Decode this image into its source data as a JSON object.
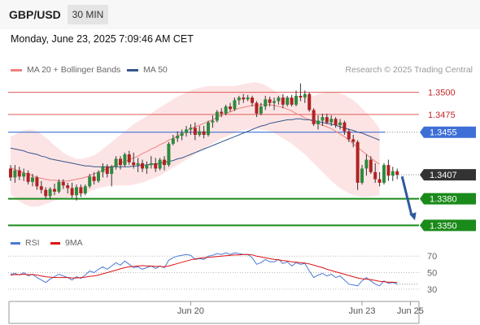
{
  "header": {
    "symbol": "GBP/USD",
    "timeframe": "30 MIN",
    "timestamp": "Monday, June 23, 2025 7:09:46 AM CET",
    "credit": "Research © 2025 Trading Central"
  },
  "legend": {
    "ma20_label": "MA 20 + Bollinger Bands",
    "ma50_label": "MA 50",
    "rsi_label": "RSI",
    "ma9_label": "9MA"
  },
  "colors": {
    "bollinger_fill": "#fde4e4",
    "ma20": "#f08080",
    "ma50": "#34568b",
    "resistance": "#e05a5a",
    "pivot": "#3d6fd6",
    "support": "#1a8a1a",
    "candle_up": "#2e8b3e",
    "candle_down": "#b22222",
    "rsi": "#4a78d6",
    "rsi_ma": "#dd1111",
    "arrow": "#2d5a9e"
  },
  "chart_data": [
    {
      "type": "candlestick",
      "panel": "price",
      "y_min": 1.3343,
      "y_max": 1.3517,
      "x_labels": [
        {
          "label": "Jun 20",
          "index": 41
        },
        {
          "label": "Jun 23",
          "index": 80
        },
        {
          "label": "Jun 25",
          "index": 91
        }
      ],
      "levels": [
        {
          "value": "1.3500",
          "type": "resistance"
        },
        {
          "value": "1.3475",
          "type": "resistance"
        },
        {
          "value": "1.3455",
          "type": "pivot"
        },
        {
          "value": "1.3407",
          "type": "last"
        },
        {
          "value": "1.3380",
          "type": "support"
        },
        {
          "value": "1.3350",
          "type": "support"
        }
      ],
      "forecast": {
        "from": 1.3407,
        "to": 1.3352,
        "direction": "down"
      },
      "series": [
        {
          "name": "MA 20",
          "values": [
            1.3415,
            1.3413,
            1.3411,
            1.3409,
            1.3408,
            1.3406,
            1.3404,
            1.3403,
            1.3402,
            1.3401,
            1.3401,
            1.34,
            1.34,
            1.34,
            1.3401,
            1.3402,
            1.3403,
            1.3404,
            1.3406,
            1.3408,
            1.341,
            1.3412,
            1.3414,
            1.3416,
            1.3418,
            1.342,
            1.3422,
            1.3424,
            1.3426,
            1.3428,
            1.3431,
            1.3433,
            1.3436,
            1.3438,
            1.3441,
            1.3443,
            1.3446,
            1.3448,
            1.3451,
            1.3453,
            1.3456,
            1.3459,
            1.3461,
            1.3463,
            1.3465,
            1.3467,
            1.3469,
            1.3472,
            1.3474,
            1.3476,
            1.3478,
            1.348,
            1.3482,
            1.3483,
            1.3484,
            1.3485,
            1.3485,
            1.3486,
            1.3486,
            1.3486,
            1.3485,
            1.3484,
            1.3483,
            1.3481,
            1.3479,
            1.3476,
            1.3474,
            1.3471,
            1.3469,
            1.3467,
            1.3465,
            1.3463,
            1.3461,
            1.3459,
            1.3456,
            1.3453,
            1.345,
            1.3446,
            1.3442,
            1.3438,
            1.3434,
            1.343,
            1.3426,
            1.3422,
            1.3419
          ]
        },
        {
          "name": "MA 50",
          "values": [
            1.3437,
            1.3436,
            1.3435,
            1.3434,
            1.3432,
            1.3431,
            1.343,
            1.3428,
            1.3427,
            1.3425,
            1.3424,
            1.3423,
            1.3422,
            1.3421,
            1.342,
            1.3419,
            1.3418,
            1.3417,
            1.3417,
            1.3416,
            1.3416,
            1.3416,
            1.3416,
            1.3416,
            1.3416,
            1.3416,
            1.3416,
            1.3416,
            1.3417,
            1.3417,
            1.3418,
            1.3418,
            1.3419,
            1.3419,
            1.342,
            1.3421,
            1.3422,
            1.3423,
            1.3425,
            1.3426,
            1.3428,
            1.343,
            1.3432,
            1.3434,
            1.3436,
            1.3438,
            1.344,
            1.3442,
            1.3444,
            1.3446,
            1.3448,
            1.345,
            1.3452,
            1.3454,
            1.3456,
            1.3458,
            1.346,
            1.3462,
            1.3463,
            1.3465,
            1.3466,
            1.3467,
            1.3468,
            1.3469,
            1.3469,
            1.347,
            1.347,
            1.3469,
            1.3469,
            1.3468,
            1.3467,
            1.3466,
            1.3465,
            1.3464,
            1.3463,
            1.3461,
            1.346,
            1.3458,
            1.3457,
            1.3455,
            1.3454,
            1.3452,
            1.345,
            1.3448,
            1.3446
          ]
        }
      ],
      "bands": {
        "upper": [
          1.345,
          1.3452,
          1.3455,
          1.3457,
          1.3458,
          1.3458,
          1.3456,
          1.3453,
          1.3449,
          1.3445,
          1.344,
          1.3436,
          1.3432,
          1.3429,
          1.3427,
          1.3425,
          1.3425,
          1.3426,
          1.3427,
          1.3429,
          1.3432,
          1.3436,
          1.344,
          1.3444,
          1.3448,
          1.3452,
          1.3456,
          1.346,
          1.3464,
          1.3467,
          1.347,
          1.3473,
          1.3476,
          1.348,
          1.3483,
          1.3486,
          1.3489,
          1.3492,
          1.3495,
          1.3497,
          1.35,
          1.3502,
          1.3504,
          1.3505,
          1.3506,
          1.3507,
          1.3507,
          1.3507,
          1.3507,
          1.3507,
          1.3507,
          1.3507,
          1.3508,
          1.3509,
          1.351,
          1.3511,
          1.3511,
          1.351,
          1.3508,
          1.3505,
          1.3502,
          1.3499,
          1.3497,
          1.3495,
          1.3494,
          1.3493,
          1.3493,
          1.3494,
          1.3495,
          1.3496,
          1.3498,
          1.3499,
          1.35,
          1.35,
          1.35,
          1.3499,
          1.3497,
          1.3494,
          1.3491,
          1.3487,
          1.3482,
          1.3477,
          1.3472,
          1.3466,
          1.3459
        ],
        "lower": [
          1.3385,
          1.3381,
          1.3377,
          1.3374,
          1.3372,
          1.3371,
          1.3371,
          1.3372,
          1.3374,
          1.3376,
          1.3378,
          1.3379,
          1.338,
          1.3381,
          1.3382,
          1.3383,
          1.3384,
          1.3386,
          1.3388,
          1.339,
          1.3392,
          1.3393,
          1.3394,
          1.3395,
          1.3395,
          1.3395,
          1.3395,
          1.3395,
          1.3396,
          1.3397,
          1.3398,
          1.34,
          1.3402,
          1.3404,
          1.3406,
          1.3409,
          1.3412,
          1.3415,
          1.3418,
          1.3421,
          1.3424,
          1.3427,
          1.343,
          1.3433,
          1.3436,
          1.3439,
          1.3442,
          1.3445,
          1.3448,
          1.345,
          1.3452,
          1.3454,
          1.3456,
          1.3457,
          1.3458,
          1.3459,
          1.3459,
          1.3458,
          1.3457,
          1.3456,
          1.3454,
          1.3451,
          1.3448,
          1.3445,
          1.3442,
          1.3438,
          1.3434,
          1.343,
          1.3425,
          1.342,
          1.3415,
          1.341,
          1.3405,
          1.34,
          1.3396,
          1.3392,
          1.3389,
          1.3386,
          1.3384,
          1.3383,
          1.3382,
          1.3382,
          1.3382,
          1.3383,
          1.3384
        ]
      },
      "candles": [
        [
          1.3414,
          1.3418,
          1.34,
          1.3404
        ],
        [
          1.3404,
          1.3418,
          1.3398,
          1.3412
        ],
        [
          1.3412,
          1.3416,
          1.3401,
          1.3405
        ],
        [
          1.3405,
          1.3414,
          1.34,
          1.3409
        ],
        [
          1.3409,
          1.3412,
          1.3396,
          1.3399
        ],
        [
          1.3399,
          1.3408,
          1.3394,
          1.3404
        ],
        [
          1.3404,
          1.3406,
          1.339,
          1.3394
        ],
        [
          1.3394,
          1.34,
          1.3386,
          1.339
        ],
        [
          1.339,
          1.3393,
          1.338,
          1.3383
        ],
        [
          1.3383,
          1.3393,
          1.338,
          1.3391
        ],
        [
          1.3391,
          1.3397,
          1.3384,
          1.3388
        ],
        [
          1.3388,
          1.3402,
          1.3386,
          1.3399
        ],
        [
          1.3399,
          1.3402,
          1.3391,
          1.3395
        ],
        [
          1.3395,
          1.3398,
          1.3386,
          1.3392
        ],
        [
          1.3392,
          1.3398,
          1.3381,
          1.3384
        ],
        [
          1.3384,
          1.3396,
          1.3378,
          1.3393
        ],
        [
          1.3393,
          1.3396,
          1.3382,
          1.3386
        ],
        [
          1.3386,
          1.3396,
          1.3384,
          1.3394
        ],
        [
          1.3394,
          1.3408,
          1.3392,
          1.3405
        ],
        [
          1.3405,
          1.341,
          1.3396,
          1.34
        ],
        [
          1.34,
          1.3412,
          1.3398,
          1.341
        ],
        [
          1.341,
          1.342,
          1.3404,
          1.3416
        ],
        [
          1.3416,
          1.3419,
          1.3404,
          1.3408
        ],
        [
          1.3408,
          1.3418,
          1.3394,
          1.3416
        ],
        [
          1.3416,
          1.3428,
          1.3413,
          1.3425
        ],
        [
          1.3425,
          1.3428,
          1.3413,
          1.3418
        ],
        [
          1.3418,
          1.3432,
          1.3416,
          1.343
        ],
        [
          1.343,
          1.3434,
          1.3418,
          1.3421
        ],
        [
          1.3421,
          1.3432,
          1.3414,
          1.3418
        ],
        [
          1.3418,
          1.3426,
          1.341,
          1.342
        ],
        [
          1.342,
          1.3424,
          1.341,
          1.3414
        ],
        [
          1.3414,
          1.3422,
          1.3408,
          1.3418
        ],
        [
          1.3418,
          1.3428,
          1.3414,
          1.342
        ],
        [
          1.342,
          1.3426,
          1.341,
          1.3414
        ],
        [
          1.3414,
          1.3426,
          1.3412,
          1.3424
        ],
        [
          1.3424,
          1.3428,
          1.3412,
          1.3418
        ],
        [
          1.3418,
          1.3444,
          1.3416,
          1.3442
        ],
        [
          1.3442,
          1.3452,
          1.344,
          1.3448
        ],
        [
          1.3448,
          1.3456,
          1.3444,
          1.3451
        ],
        [
          1.3451,
          1.3458,
          1.3446,
          1.3454
        ],
        [
          1.3454,
          1.3462,
          1.345,
          1.3458
        ],
        [
          1.3458,
          1.3464,
          1.3452,
          1.346
        ],
        [
          1.346,
          1.3466,
          1.3446,
          1.3452
        ],
        [
          1.3452,
          1.3462,
          1.345,
          1.3456
        ],
        [
          1.3456,
          1.3462,
          1.3448,
          1.3452
        ],
        [
          1.3452,
          1.3468,
          1.345,
          1.3466
        ],
        [
          1.3466,
          1.3474,
          1.346,
          1.3468
        ],
        [
          1.3468,
          1.348,
          1.3466,
          1.3478
        ],
        [
          1.3478,
          1.3482,
          1.3472,
          1.3476
        ],
        [
          1.3476,
          1.3486,
          1.3474,
          1.3484
        ],
        [
          1.3484,
          1.3488,
          1.3478,
          1.3481
        ],
        [
          1.3481,
          1.3494,
          1.3479,
          1.3491
        ],
        [
          1.3491,
          1.3496,
          1.3486,
          1.3494
        ],
        [
          1.3494,
          1.3498,
          1.3488,
          1.3492
        ],
        [
          1.3492,
          1.3497,
          1.349,
          1.3494
        ],
        [
          1.3494,
          1.3496,
          1.3484,
          1.3488
        ],
        [
          1.3488,
          1.349,
          1.3472,
          1.3476
        ],
        [
          1.3476,
          1.3488,
          1.3474,
          1.3484
        ],
        [
          1.3484,
          1.3496,
          1.348,
          1.3492
        ],
        [
          1.3492,
          1.3495,
          1.3484,
          1.3488
        ],
        [
          1.3488,
          1.3494,
          1.348,
          1.349
        ],
        [
          1.349,
          1.3496,
          1.3486,
          1.3494
        ],
        [
          1.3494,
          1.3498,
          1.3482,
          1.3486
        ],
        [
          1.3486,
          1.3496,
          1.3484,
          1.3494
        ],
        [
          1.3494,
          1.3497,
          1.3484,
          1.3486
        ],
        [
          1.3486,
          1.3502,
          1.3484,
          1.3496
        ],
        [
          1.3496,
          1.351,
          1.349,
          1.3494
        ],
        [
          1.3494,
          1.3502,
          1.3488,
          1.3498
        ],
        [
          1.3498,
          1.35,
          1.3478,
          1.348
        ],
        [
          1.348,
          1.3482,
          1.3462,
          1.3464
        ],
        [
          1.3464,
          1.3474,
          1.3458,
          1.3468
        ],
        [
          1.3468,
          1.3476,
          1.3462,
          1.3472
        ],
        [
          1.3472,
          1.3476,
          1.3464,
          1.3466
        ],
        [
          1.3466,
          1.3474,
          1.3462,
          1.347
        ],
        [
          1.347,
          1.3472,
          1.346,
          1.3463
        ],
        [
          1.3463,
          1.347,
          1.3458,
          1.3466
        ],
        [
          1.3466,
          1.3468,
          1.3452,
          1.3456
        ],
        [
          1.3456,
          1.3459,
          1.3444,
          1.3447
        ],
        [
          1.3447,
          1.3452,
          1.3438,
          1.3444
        ],
        [
          1.3444,
          1.3446,
          1.339,
          1.3398
        ],
        [
          1.3398,
          1.3418,
          1.3396,
          1.3414
        ],
        [
          1.3414,
          1.343,
          1.3406,
          1.3424
        ],
        [
          1.3424,
          1.3428,
          1.3408,
          1.341
        ],
        [
          1.341,
          1.342,
          1.3398,
          1.3402
        ],
        [
          1.3402,
          1.341,
          1.3394,
          1.3398
        ],
        [
          1.3398,
          1.342,
          1.3396,
          1.3418
        ],
        [
          1.3418,
          1.3424,
          1.34,
          1.3406
        ],
        [
          1.3406,
          1.3416,
          1.34,
          1.3411
        ],
        [
          1.3411,
          1.3414,
          1.3402,
          1.3407
        ]
      ]
    },
    {
      "type": "line",
      "panel": "rsi",
      "ylim": [
        18,
        82
      ],
      "y_ticks": [
        70,
        50,
        30
      ],
      "series": [
        {
          "name": "RSI",
          "values": [
            48,
            49,
            47,
            50,
            46,
            48,
            44,
            41,
            38,
            42,
            45,
            48,
            46,
            44,
            41,
            45,
            43,
            47,
            52,
            50,
            54,
            57,
            54,
            58,
            62,
            59,
            64,
            60,
            56,
            57,
            54,
            56,
            58,
            55,
            58,
            56,
            65,
            68,
            70,
            71,
            72,
            71,
            66,
            67,
            66,
            70,
            71,
            73,
            72,
            74,
            72,
            74,
            73,
            72,
            72,
            68,
            60,
            62,
            66,
            63,
            63,
            66,
            61,
            63,
            58,
            62,
            60,
            61,
            52,
            44,
            47,
            49,
            46,
            48,
            44,
            46,
            41,
            36,
            35,
            34,
            40,
            44,
            40,
            36,
            34,
            40,
            37,
            38,
            36
          ]
        },
        {
          "name": "9MA",
          "values": [
            47,
            47.5,
            47.5,
            48,
            47.5,
            47.5,
            47,
            46,
            45,
            44.5,
            44,
            44,
            44,
            44,
            43.5,
            43.5,
            44,
            44.5,
            45.5,
            46,
            47,
            48.5,
            50,
            51.5,
            53,
            54.5,
            56,
            57,
            57.5,
            58,
            58.5,
            58,
            58,
            57.5,
            57.5,
            57,
            58,
            59.5,
            61,
            62.5,
            64,
            65.5,
            66.5,
            67.5,
            68,
            68.5,
            69,
            69.5,
            70,
            70.5,
            71,
            71.5,
            71.5,
            72,
            72,
            71.5,
            70,
            69,
            68,
            67,
            66,
            65.5,
            64.5,
            64,
            63,
            62.5,
            62,
            61.5,
            60.5,
            59,
            57.5,
            56,
            54,
            52.5,
            51,
            49.5,
            48,
            46.5,
            45,
            43.5,
            42.5,
            42,
            41.5,
            40.5,
            39.5,
            39,
            38.5,
            38.5,
            38
          ]
        }
      ]
    }
  ]
}
